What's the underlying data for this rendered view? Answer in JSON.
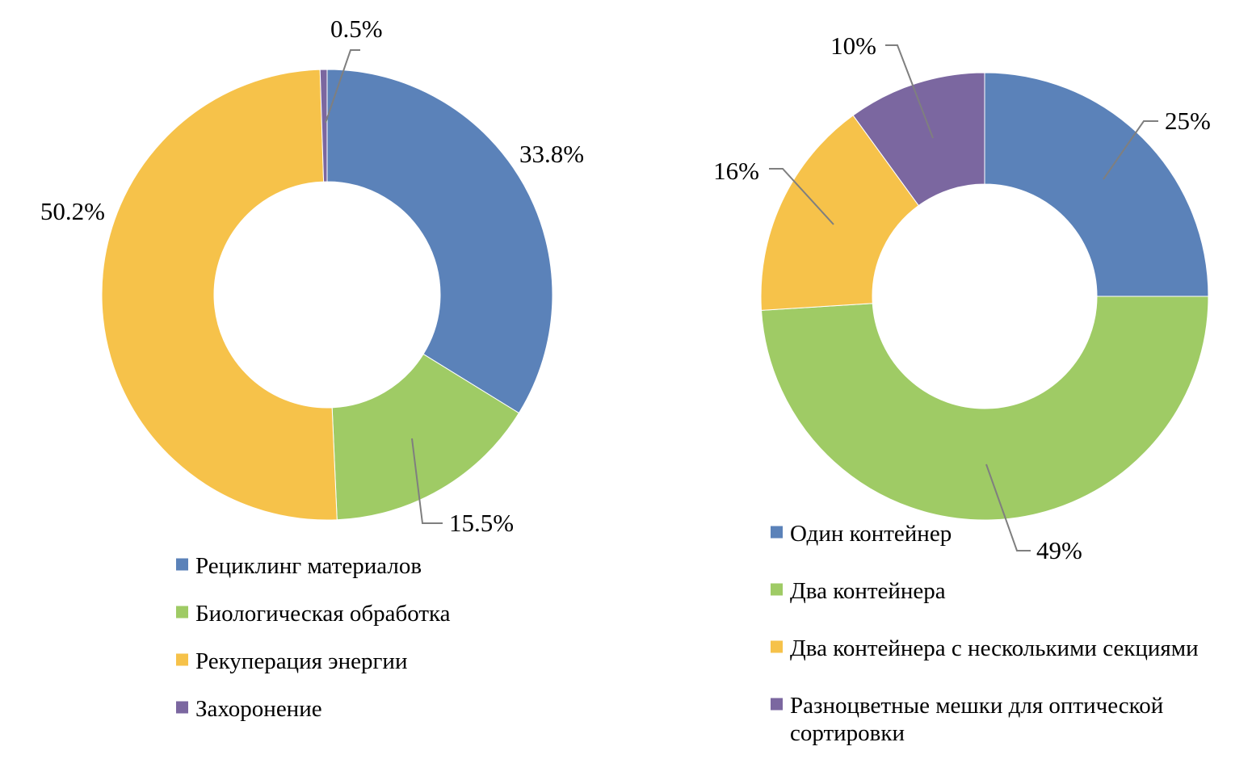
{
  "chart_data": [
    {
      "type": "pie",
      "donut": true,
      "title": "",
      "categories": [
        "Рециклинг материалов",
        "Биологическая обработка",
        "Рекуперация энергии",
        "Захоронение"
      ],
      "values": [
        33.8,
        15.5,
        50.2,
        0.5
      ],
      "data_labels": [
        "33.8%",
        "15.5%",
        "50.2%",
        "0.5%"
      ],
      "colors": [
        "#5b82b9",
        "#9fcb65",
        "#f6c24a",
        "#7b67a0"
      ],
      "legend": {
        "position": "bottom",
        "items": [
          "Рециклинг материалов",
          "Биологическая обработка",
          "Рекуперация энергии",
          "Захоронение"
        ]
      }
    },
    {
      "type": "pie",
      "donut": true,
      "title": "",
      "categories": [
        "Один контейнер",
        "Два контейнера",
        "Два контейнера с несколькими секциями",
        "Разноцветные мешки для оптической сортировки"
      ],
      "values": [
        25,
        49,
        16,
        10
      ],
      "data_labels": [
        "25%",
        "49%",
        "16%",
        "10%"
      ],
      "colors": [
        "#5b82b9",
        "#9fcb65",
        "#f6c24a",
        "#7b67a0"
      ],
      "legend": {
        "position": "bottom",
        "items": [
          "Один контейнер",
          "Два контейнера",
          "Два контейнера с несколькими секциями",
          "Разноцветные мешки для оптической сортировки"
        ]
      }
    }
  ]
}
